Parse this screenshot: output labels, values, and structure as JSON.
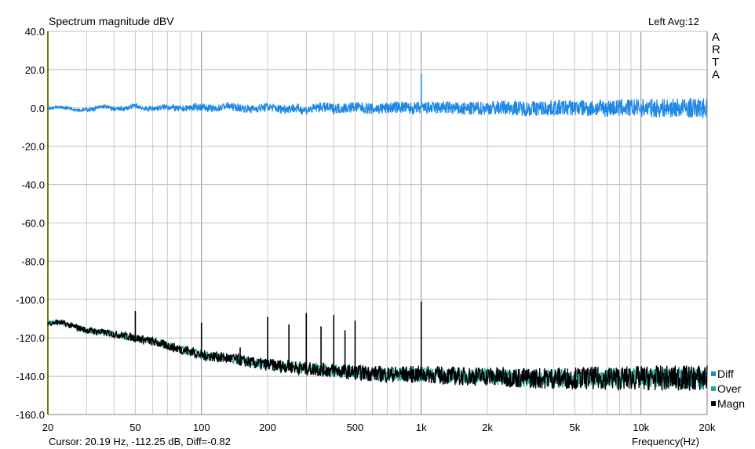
{
  "header": {
    "title": "Spectrum magnitude dBV",
    "top_right": "Left  Avg:12",
    "brand_letters": [
      "A",
      "R",
      "T",
      "A"
    ]
  },
  "footer": {
    "cursor": "Cursor: 20.19 Hz, -112.25 dB,  Diff=-0.82",
    "xlabel": "Frequency(Hz)"
  },
  "chart_data": {
    "type": "line",
    "title": "Spectrum magnitude dBV",
    "xlabel": "Frequency(Hz)",
    "ylabel": "",
    "xscale": "log",
    "xlim": [
      20,
      20000
    ],
    "ylim": [
      -160,
      40
    ],
    "grid": true,
    "legend_position": "bottom-right",
    "x_ticks": [
      {
        "value": 20,
        "label": "20"
      },
      {
        "value": 50,
        "label": "50"
      },
      {
        "value": 100,
        "label": "100"
      },
      {
        "value": 200,
        "label": "200"
      },
      {
        "value": 500,
        "label": "500"
      },
      {
        "value": 1000,
        "label": "1k"
      },
      {
        "value": 2000,
        "label": "2k"
      },
      {
        "value": 5000,
        "label": "5k"
      },
      {
        "value": 10000,
        "label": "10k"
      },
      {
        "value": 20000,
        "label": "20k"
      }
    ],
    "y_ticks": [
      {
        "value": 40,
        "label": "40.0"
      },
      {
        "value": 20,
        "label": "20.0"
      },
      {
        "value": 0,
        "label": "0.0"
      },
      {
        "value": -20,
        "label": "-20.0"
      },
      {
        "value": -40,
        "label": "-40.0"
      },
      {
        "value": -60,
        "label": "-60.0"
      },
      {
        "value": -80,
        "label": "-80.0"
      },
      {
        "value": -100,
        "label": "-100.0"
      },
      {
        "value": -120,
        "label": "-120.0"
      },
      {
        "value": -140,
        "label": "-140.0"
      },
      {
        "value": -160,
        "label": "-160.0"
      }
    ],
    "series": [
      {
        "name": "Diff",
        "color": "#1e88e5",
        "x": [
          20,
          22,
          25,
          28,
          32,
          36,
          40,
          45,
          50,
          56,
          63,
          71,
          80,
          90,
          100,
          115,
          130,
          150,
          170,
          200,
          230,
          260,
          300,
          350,
          400,
          450,
          500,
          600,
          700,
          800,
          900,
          1000,
          1000,
          1100,
          1300,
          1500,
          2000,
          2500,
          3000,
          4000,
          5000,
          6000,
          8000,
          10000,
          12000,
          15000,
          20000
        ],
        "values": [
          -0.5,
          1,
          0,
          -2,
          -1,
          1.5,
          -1,
          -0.5,
          2,
          -1,
          0,
          1,
          -1,
          0.5,
          1,
          -1,
          2,
          0,
          -1,
          1,
          -1,
          0,
          -2,
          1,
          -0.5,
          0,
          1,
          -1,
          0,
          1,
          -0.5,
          0,
          18,
          0,
          0.5,
          -1,
          0,
          0.5,
          -0.5,
          0,
          0.3,
          -0.3,
          0,
          0.2,
          -0.2,
          0,
          0
        ]
      },
      {
        "name": "Over",
        "color": "#26a69a",
        "x": [
          20,
          23,
          26,
          30,
          35,
          40,
          45,
          50,
          55,
          60,
          70,
          80,
          90,
          100,
          120,
          140,
          170,
          200,
          250,
          300,
          400,
          500,
          700,
          1000,
          1500,
          2000,
          3000,
          5000,
          7000,
          10000,
          15000,
          20000
        ],
        "values": [
          -112,
          -112,
          -114,
          -116,
          -117,
          -118,
          -119,
          -120,
          -121,
          -122,
          -124,
          -126,
          -127,
          -129,
          -130,
          -131,
          -133,
          -134,
          -135,
          -136,
          -137,
          -138,
          -139,
          -139,
          -140,
          -140,
          -141,
          -141,
          -141,
          -141,
          -141,
          -141
        ]
      },
      {
        "name": "Magn",
        "color": "#000000",
        "x": [
          20,
          23,
          26,
          30,
          35,
          40,
          45,
          50,
          55,
          60,
          70,
          80,
          90,
          100,
          120,
          140,
          170,
          200,
          250,
          300,
          400,
          500,
          700,
          1000,
          1500,
          2000,
          3000,
          5000,
          7000,
          10000,
          15000,
          20000
        ],
        "values": [
          -112.25,
          -112,
          -114,
          -116,
          -117,
          -118,
          -119,
          -120,
          -121,
          -122,
          -124,
          -126,
          -127,
          -129,
          -130,
          -131,
          -133,
          -134,
          -135,
          -136,
          -137,
          -138,
          -139,
          -139,
          -140,
          -140,
          -141,
          -141,
          -141,
          -141,
          -141,
          -141
        ],
        "peaks": [
          {
            "x": 50,
            "value": -106
          },
          {
            "x": 100,
            "value": -112
          },
          {
            "x": 150,
            "value": -125
          },
          {
            "x": 200,
            "value": -109
          },
          {
            "x": 250,
            "value": -113
          },
          {
            "x": 300,
            "value": -107
          },
          {
            "x": 350,
            "value": -114
          },
          {
            "x": 400,
            "value": -108
          },
          {
            "x": 450,
            "value": -116
          },
          {
            "x": 500,
            "value": -111
          },
          {
            "x": 1000,
            "value": -101
          }
        ],
        "harmonic_comb": {
          "fundamental": 1000,
          "start": 50,
          "step": 50,
          "end": 20000,
          "top_at_start": -113,
          "top_at_end": -131
        }
      }
    ]
  }
}
